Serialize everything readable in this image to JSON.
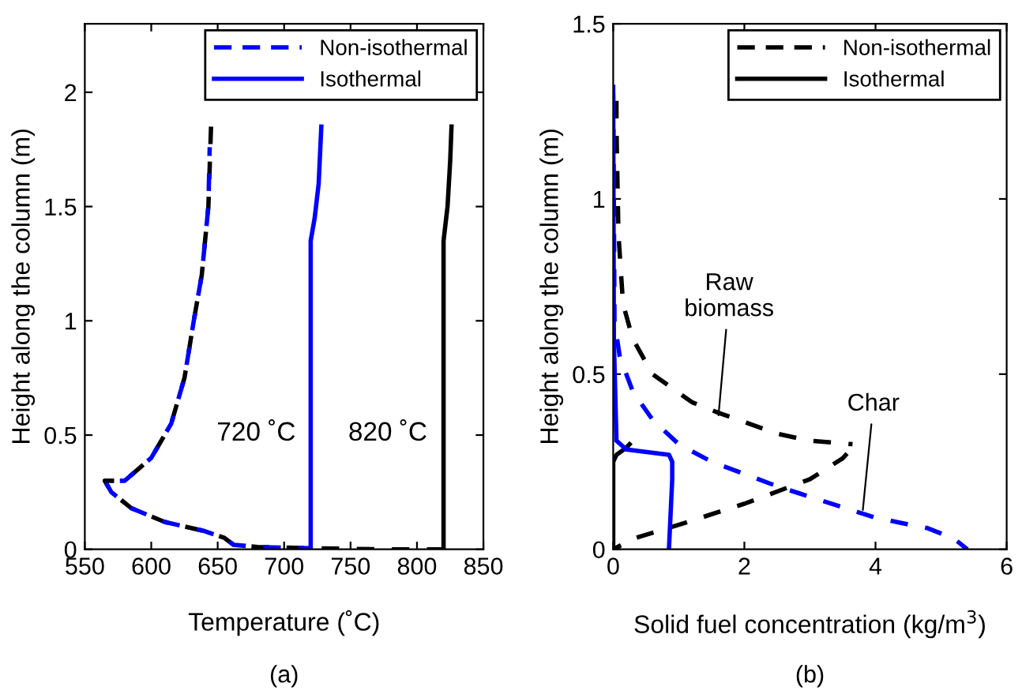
{
  "chart_data": [
    {
      "type": "line",
      "xlabel": "Temperature (˚C)",
      "ylabel": "Height along the column (m)",
      "xlim": [
        550,
        850
      ],
      "ylim": [
        0,
        2.3
      ],
      "xticks": [
        550,
        600,
        650,
        700,
        750,
        800,
        850
      ],
      "yticks": [
        0,
        0.5,
        1,
        1.5,
        2
      ],
      "legend": "top right",
      "grid": false,
      "annotations": [
        "720 ˚C",
        "820 ˚C",
        "(a)"
      ],
      "series": [
        {
          "color": "#000000",
          "line_style": "dashed",
          "x": [
            645,
            643,
            638,
            632,
            625,
            615,
            600,
            580,
            565,
            570,
            585,
            610,
            640,
            655,
            662,
            680,
            720,
            770,
            820
          ],
          "values": [
            1.85,
            1.5,
            1.2,
            1.0,
            0.75,
            0.55,
            0.4,
            0.3,
            0.3,
            0.25,
            0.18,
            0.12,
            0.08,
            0.05,
            0.02,
            0.01,
            0.005,
            0.0,
            0.0
          ]
        },
        {
          "name": "Non-isothermal",
          "color": "#0000ff",
          "line_style": "dashed",
          "x": [
            644,
            643,
            638,
            632,
            625,
            615,
            600,
            580,
            565,
            570,
            585,
            610,
            640,
            655,
            662,
            680,
            720
          ],
          "values": [
            1.76,
            1.5,
            1.2,
            1.0,
            0.75,
            0.55,
            0.4,
            0.3,
            0.3,
            0.25,
            0.18,
            0.12,
            0.08,
            0.05,
            0.02,
            0.01,
            0.005
          ]
        },
        {
          "name": "Isothermal",
          "color": "#0000ff",
          "line_style": "solid",
          "x": [
            720,
            720,
            723,
            726,
            728
          ],
          "values": [
            0,
            1.35,
            1.45,
            1.6,
            1.85
          ]
        },
        {
          "color": "#000000",
          "line_style": "solid",
          "x": [
            820,
            820,
            823,
            825,
            826
          ],
          "values": [
            0,
            1.35,
            1.5,
            1.7,
            1.85
          ]
        }
      ]
    },
    {
      "type": "line",
      "xlabel": "Solid fuel concentration (kg/m$^{3}$)",
      "ylabel": "Height along the column (m)",
      "xlim": [
        0,
        6
      ],
      "ylim": [
        0,
        1.5
      ],
      "xticks": [
        0,
        2,
        4,
        6
      ],
      "yticks": [
        0,
        0.5,
        1,
        1.5
      ],
      "legend": "top right",
      "grid": false,
      "annotations": [
        {
          "text": "Raw\nbiomass",
          "x": 1.6,
          "y": 0.37
        },
        {
          "text": "Char",
          "x": 3.8,
          "y": 0.1
        },
        "(b)"
      ],
      "series": [
        {
          "name": "Non-isothermal",
          "color": "#000000",
          "line_style": "dashed",
          "x": [
            0.05,
            0.05,
            0.08,
            0.15,
            0.3,
            0.6,
            1.2,
            1.6,
            2.5,
            3.0,
            3.65
          ],
          "values": [
            1.28,
            1.2,
            0.9,
            0.7,
            0.6,
            0.5,
            0.42,
            0.39,
            0.33,
            0.31,
            0.3
          ]
        },
        {
          "color": "#000000",
          "line_style": "dashed",
          "x": [
            0,
            0.3,
            1,
            2,
            3,
            3.5,
            3.7
          ],
          "values": [
            0,
            0.03,
            0.07,
            0.13,
            0.2,
            0.26,
            0.3
          ]
        },
        {
          "color": "#0000ff",
          "line_style": "dashed",
          "x": [
            0,
            0.01,
            0.02,
            0.1,
            0.3,
            0.6,
            1.0,
            1.5,
            2.5,
            3.5,
            4.0,
            4.8,
            5.2,
            5.4
          ],
          "values": [
            1.3,
            1.0,
            0.65,
            0.55,
            0.45,
            0.37,
            0.3,
            0.25,
            0.18,
            0.12,
            0.09,
            0.06,
            0.03,
            0.0
          ]
        },
        {
          "name": "Isothermal",
          "color": "#000000",
          "line_style": "solid",
          "x": [
            0,
            0,
            0.05,
            0.2,
            0.25
          ],
          "values": [
            0,
            0.25,
            0.27,
            0.29,
            0.3
          ]
        },
        {
          "color": "#0000ff",
          "line_style": "solid",
          "x": [
            0,
            0.01,
            0.05,
            0.2,
            0.85,
            0.9,
            0.9,
            0.85
          ],
          "values": [
            1.32,
            0.6,
            0.31,
            0.285,
            0.27,
            0.25,
            0.2,
            0.0
          ]
        }
      ]
    }
  ]
}
